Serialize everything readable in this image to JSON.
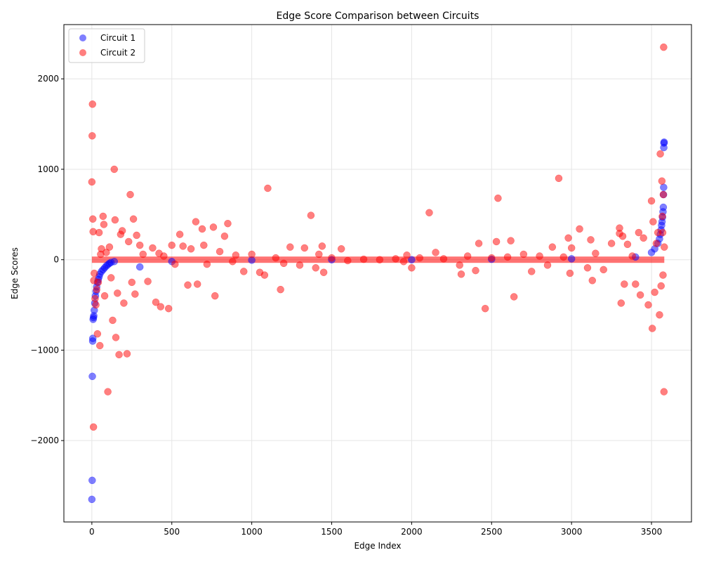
{
  "chart_data": {
    "type": "scatter",
    "title": "Edge Score Comparison between Circuits",
    "xlabel": "Edge Index",
    "ylabel": "Edge Scores",
    "xlim": [
      -175,
      3750
    ],
    "ylim": [
      -2900,
      2600
    ],
    "xticks": [
      0,
      500,
      1000,
      1500,
      2000,
      2500,
      3000,
      3500
    ],
    "yticks": [
      -2000,
      -1000,
      0,
      1000,
      2000
    ],
    "grid": true,
    "legend_position": "top-left",
    "series": [
      {
        "name": "Circuit 1",
        "color": "#0000ff",
        "alpha": 0.5,
        "points": [
          [
            0,
            -2650
          ],
          [
            2,
            -2440
          ],
          [
            3,
            -1290
          ],
          [
            5,
            -900
          ],
          [
            6,
            -870
          ],
          [
            8,
            -660
          ],
          [
            10,
            -640
          ],
          [
            12,
            -620
          ],
          [
            15,
            -560
          ],
          [
            18,
            -480
          ],
          [
            22,
            -400
          ],
          [
            26,
            -350
          ],
          [
            30,
            -300
          ],
          [
            35,
            -250
          ],
          [
            40,
            -220
          ],
          [
            45,
            -190
          ],
          [
            50,
            -160
          ],
          [
            60,
            -130
          ],
          [
            70,
            -110
          ],
          [
            80,
            -90
          ],
          [
            90,
            -70
          ],
          [
            100,
            -55
          ],
          [
            110,
            -40
          ],
          [
            120,
            -30
          ],
          [
            140,
            -20
          ],
          [
            300,
            -80
          ],
          [
            500,
            -20
          ],
          [
            1000,
            -5
          ],
          [
            1500,
            0
          ],
          [
            2000,
            0
          ],
          [
            2500,
            5
          ],
          [
            3000,
            10
          ],
          [
            3400,
            30
          ],
          [
            3500,
            80
          ],
          [
            3520,
            120
          ],
          [
            3540,
            180
          ],
          [
            3550,
            230
          ],
          [
            3555,
            280
          ],
          [
            3560,
            330
          ],
          [
            3563,
            380
          ],
          [
            3566,
            420
          ],
          [
            3569,
            470
          ],
          [
            3572,
            530
          ],
          [
            3574,
            580
          ],
          [
            3575,
            720
          ],
          [
            3576,
            800
          ],
          [
            3577,
            1240
          ],
          [
            3578,
            1290
          ],
          [
            3579,
            1300
          ]
        ]
      },
      {
        "name": "Circuit 2",
        "color": "#ff0000",
        "alpha": 0.5,
        "points": [
          [
            0,
            860
          ],
          [
            2,
            1370
          ],
          [
            4,
            1720
          ],
          [
            6,
            450
          ],
          [
            8,
            310
          ],
          [
            10,
            -1850
          ],
          [
            12,
            -230
          ],
          [
            15,
            -150
          ],
          [
            20,
            -430
          ],
          [
            25,
            -500
          ],
          [
            30,
            -330
          ],
          [
            35,
            -820
          ],
          [
            40,
            -250
          ],
          [
            45,
            300
          ],
          [
            50,
            -950
          ],
          [
            55,
            60
          ],
          [
            60,
            120
          ],
          [
            70,
            480
          ],
          [
            75,
            390
          ],
          [
            80,
            -400
          ],
          [
            90,
            80
          ],
          [
            100,
            -1460
          ],
          [
            110,
            140
          ],
          [
            120,
            -200
          ],
          [
            130,
            -670
          ],
          [
            140,
            1000
          ],
          [
            145,
            440
          ],
          [
            150,
            -860
          ],
          [
            160,
            -370
          ],
          [
            170,
            -1050
          ],
          [
            180,
            280
          ],
          [
            190,
            320
          ],
          [
            200,
            -480
          ],
          [
            220,
            -1040
          ],
          [
            230,
            200
          ],
          [
            240,
            720
          ],
          [
            250,
            -250
          ],
          [
            260,
            450
          ],
          [
            270,
            -380
          ],
          [
            280,
            270
          ],
          [
            300,
            160
          ],
          [
            320,
            60
          ],
          [
            350,
            -240
          ],
          [
            380,
            130
          ],
          [
            400,
            -470
          ],
          [
            420,
            70
          ],
          [
            430,
            -520
          ],
          [
            450,
            40
          ],
          [
            480,
            -540
          ],
          [
            500,
            160
          ],
          [
            520,
            -50
          ],
          [
            550,
            280
          ],
          [
            570,
            150
          ],
          [
            600,
            -280
          ],
          [
            620,
            120
          ],
          [
            650,
            420
          ],
          [
            660,
            -270
          ],
          [
            690,
            340
          ],
          [
            700,
            160
          ],
          [
            720,
            -50
          ],
          [
            760,
            360
          ],
          [
            770,
            -400
          ],
          [
            800,
            90
          ],
          [
            830,
            260
          ],
          [
            850,
            400
          ],
          [
            880,
            -20
          ],
          [
            900,
            50
          ],
          [
            950,
            -130
          ],
          [
            1000,
            60
          ],
          [
            1050,
            -140
          ],
          [
            1080,
            -170
          ],
          [
            1100,
            790
          ],
          [
            1150,
            20
          ],
          [
            1180,
            -330
          ],
          [
            1200,
            -40
          ],
          [
            1240,
            140
          ],
          [
            1300,
            -60
          ],
          [
            1330,
            130
          ],
          [
            1370,
            490
          ],
          [
            1400,
            -90
          ],
          [
            1420,
            60
          ],
          [
            1440,
            150
          ],
          [
            1450,
            -140
          ],
          [
            1500,
            20
          ],
          [
            1560,
            120
          ],
          [
            1600,
            -10
          ],
          [
            1700,
            5
          ],
          [
            1800,
            0
          ],
          [
            1900,
            10
          ],
          [
            1950,
            -20
          ],
          [
            1970,
            50
          ],
          [
            2000,
            -90
          ],
          [
            2050,
            20
          ],
          [
            2110,
            520
          ],
          [
            2150,
            80
          ],
          [
            2200,
            10
          ],
          [
            2300,
            -60
          ],
          [
            2310,
            -160
          ],
          [
            2350,
            40
          ],
          [
            2400,
            -120
          ],
          [
            2420,
            180
          ],
          [
            2460,
            -540
          ],
          [
            2500,
            20
          ],
          [
            2530,
            200
          ],
          [
            2540,
            680
          ],
          [
            2600,
            30
          ],
          [
            2620,
            210
          ],
          [
            2640,
            -410
          ],
          [
            2700,
            60
          ],
          [
            2750,
            -130
          ],
          [
            2800,
            40
          ],
          [
            2850,
            -60
          ],
          [
            2880,
            140
          ],
          [
            2920,
            900
          ],
          [
            2950,
            30
          ],
          [
            2980,
            240
          ],
          [
            2990,
            -150
          ],
          [
            3000,
            130
          ],
          [
            3050,
            340
          ],
          [
            3100,
            -90
          ],
          [
            3120,
            220
          ],
          [
            3130,
            -230
          ],
          [
            3150,
            70
          ],
          [
            3200,
            -110
          ],
          [
            3250,
            180
          ],
          [
            3300,
            290
          ],
          [
            3300,
            350
          ],
          [
            3310,
            -480
          ],
          [
            3320,
            260
          ],
          [
            3330,
            -270
          ],
          [
            3350,
            170
          ],
          [
            3380,
            40
          ],
          [
            3400,
            -270
          ],
          [
            3420,
            300
          ],
          [
            3430,
            -390
          ],
          [
            3450,
            240
          ],
          [
            3480,
            -500
          ],
          [
            3500,
            650
          ],
          [
            3505,
            -760
          ],
          [
            3510,
            420
          ],
          [
            3520,
            -360
          ],
          [
            3530,
            180
          ],
          [
            3540,
            300
          ],
          [
            3550,
            -610
          ],
          [
            3555,
            1170
          ],
          [
            3560,
            -290
          ],
          [
            3565,
            870
          ],
          [
            3568,
            480
          ],
          [
            3570,
            300
          ],
          [
            3572,
            -170
          ],
          [
            3574,
            720
          ],
          [
            3576,
            2350
          ],
          [
            3578,
            -1460
          ],
          [
            3580,
            140
          ]
        ]
      }
    ]
  }
}
